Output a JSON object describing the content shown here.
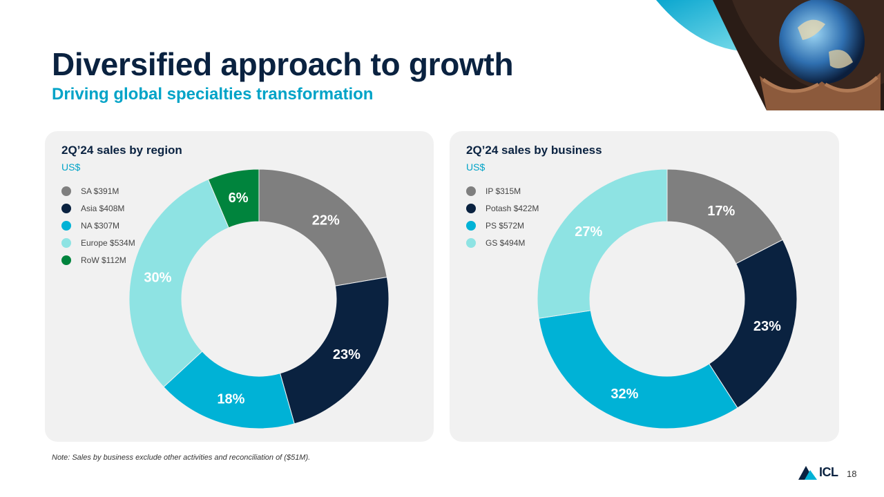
{
  "header": {
    "title": "Diversified approach to growth",
    "subtitle": "Driving global specialties transformation"
  },
  "chart_data": [
    {
      "type": "pie",
      "variant": "donut",
      "title": "2Q’24 sales by region",
      "unit": "US$",
      "categories": [
        "SA",
        "Asia",
        "NA",
        "Europe",
        "RoW"
      ],
      "values": [
        391,
        408,
        307,
        534,
        112
      ],
      "legend_labels": [
        "SA $391M",
        "Asia $408M",
        "NA $307M",
        "Europe $534M",
        "RoW $112M"
      ],
      "percent_labels": [
        "22%",
        "23%",
        "18%",
        "30%",
        "6%"
      ],
      "colors": [
        "#7f7f7f",
        "#0a2240",
        "#00b2d6",
        "#8ee3e3",
        "#00843d"
      ],
      "legend_position": "top-left"
    },
    {
      "type": "pie",
      "variant": "donut",
      "title": "2Q’24 sales by business",
      "unit": "US$",
      "categories": [
        "IP",
        "Potash",
        "PS",
        "GS"
      ],
      "values": [
        315,
        422,
        572,
        494
      ],
      "legend_labels": [
        "IP $315M",
        "Potash $422M",
        "PS $572M",
        "GS $494M"
      ],
      "percent_labels": [
        "17%",
        "23%",
        "32%",
        "27%"
      ],
      "colors": [
        "#7f7f7f",
        "#0a2240",
        "#00b2d6",
        "#8ee3e3"
      ],
      "legend_position": "top-left"
    }
  ],
  "footer": {
    "note": "Note: Sales by business exclude other activities and reconciliation of ($51M).",
    "logo_text": "ICL",
    "page_number": "18"
  }
}
